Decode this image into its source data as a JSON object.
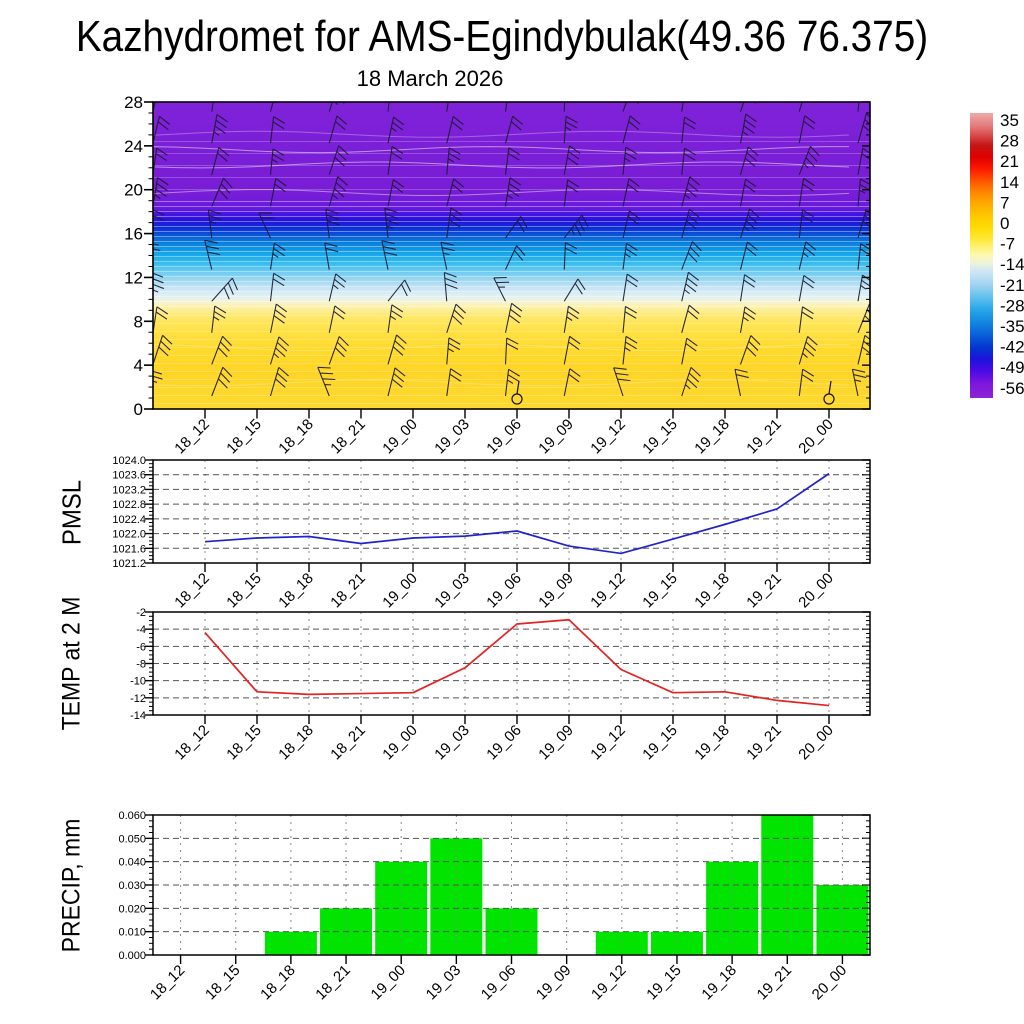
{
  "title": "Kazhydromet for AMS-Egindybulak(49.36 76.375)",
  "subtitle": "18 March 2026",
  "time_labels": [
    "18_12",
    "18_15",
    "18_18",
    "18_21",
    "19_00",
    "19_03",
    "19_06",
    "19_09",
    "19_12",
    "19_15",
    "19_18",
    "19_21",
    "20_00"
  ],
  "chart_data": [
    {
      "id": "cross-section",
      "type": "heatmap",
      "title": "18 March 2026",
      "description": "Time-height temperature cross-section with wind barbs and white contour lines",
      "categories": [
        "18_12",
        "18_15",
        "18_18",
        "18_21",
        "19_00",
        "19_03",
        "19_06",
        "19_09",
        "19_12",
        "19_15",
        "19_18",
        "19_21",
        "20_00"
      ],
      "ylim": [
        0,
        28
      ],
      "ytick_labels": [
        "28",
        "24",
        "20",
        "16",
        "12",
        "8",
        "4",
        "0"
      ],
      "grid": false,
      "wind_barbs": {
        "color": "#1b1b30",
        "columns": 13,
        "rows": 10
      },
      "calm_times": [
        "19_06",
        "20_00"
      ],
      "color_bands": [
        {
          "pos": 0.0,
          "color": "#7f22d8"
        },
        {
          "pos": 0.3,
          "color": "#781dd6"
        },
        {
          "pos": 0.345,
          "color": "#671ade"
        },
        {
          "pos": 0.366,
          "color": "#4414e0"
        },
        {
          "pos": 0.386,
          "color": "#2412de"
        },
        {
          "pos": 0.41,
          "color": "#0d2ed8"
        },
        {
          "pos": 0.435,
          "color": "#0a58d8"
        },
        {
          "pos": 0.46,
          "color": "#0a80e0"
        },
        {
          "pos": 0.49,
          "color": "#14a2e8"
        },
        {
          "pos": 0.52,
          "color": "#30b8ee"
        },
        {
          "pos": 0.55,
          "color": "#66caf0"
        },
        {
          "pos": 0.578,
          "color": "#9ad6f1"
        },
        {
          "pos": 0.603,
          "color": "#c4e3f4"
        },
        {
          "pos": 0.628,
          "color": "#ddeef6"
        },
        {
          "pos": 0.648,
          "color": "#f0f4dc"
        },
        {
          "pos": 0.663,
          "color": "#fbf2b4"
        },
        {
          "pos": 0.685,
          "color": "#feec85"
        },
        {
          "pos": 0.713,
          "color": "#ffe65c"
        },
        {
          "pos": 0.755,
          "color": "#ffe042"
        },
        {
          "pos": 0.8,
          "color": "#ffda2e"
        },
        {
          "pos": 0.885,
          "color": "#fed527"
        },
        {
          "pos": 1.0,
          "color": "#ffd930"
        }
      ],
      "colorbar": {
        "labels": [
          "35",
          "28",
          "21",
          "14",
          "7",
          "0",
          "-7",
          "-14",
          "-21",
          "-28",
          "-35",
          "-42",
          "-49",
          "-56"
        ],
        "stops": [
          {
            "pos": 0.0,
            "color": "#efa9a9"
          },
          {
            "pos": 0.045,
            "color": "#e37c7c"
          },
          {
            "pos": 0.08,
            "color": "#d74848"
          },
          {
            "pos": 0.115,
            "color": "#c41414"
          },
          {
            "pos": 0.155,
            "color": "#e00000"
          },
          {
            "pos": 0.195,
            "color": "#fb1800"
          },
          {
            "pos": 0.235,
            "color": "#ff5000"
          },
          {
            "pos": 0.275,
            "color": "#ff8200"
          },
          {
            "pos": 0.315,
            "color": "#ffa800"
          },
          {
            "pos": 0.355,
            "color": "#ffc400"
          },
          {
            "pos": 0.395,
            "color": "#ffd800"
          },
          {
            "pos": 0.435,
            "color": "#ffe52a"
          },
          {
            "pos": 0.47,
            "color": "#fff172"
          },
          {
            "pos": 0.5,
            "color": "#fdf9b4"
          },
          {
            "pos": 0.53,
            "color": "#e9f3de"
          },
          {
            "pos": 0.555,
            "color": "#cfe7f5"
          },
          {
            "pos": 0.6,
            "color": "#a5d5f1"
          },
          {
            "pos": 0.645,
            "color": "#63c1ee"
          },
          {
            "pos": 0.69,
            "color": "#28a6ea"
          },
          {
            "pos": 0.735,
            "color": "#1286e0"
          },
          {
            "pos": 0.78,
            "color": "#0a5ed8"
          },
          {
            "pos": 0.825,
            "color": "#0534d0"
          },
          {
            "pos": 0.865,
            "color": "#1d12dc"
          },
          {
            "pos": 0.905,
            "color": "#4c0ae4"
          },
          {
            "pos": 0.95,
            "color": "#7e16de"
          },
          {
            "pos": 1.0,
            "color": "#8d23d3"
          }
        ]
      }
    },
    {
      "id": "pmsl",
      "type": "line",
      "ylabel": "PMSL",
      "color": "#2323cc",
      "ylim": [
        1021.2,
        1024.0
      ],
      "ytick_labels": [
        "1024.0",
        "1023.6",
        "1023.2",
        "1022.8",
        "1022.4",
        "1022.0",
        "1021.6",
        "1021.2"
      ],
      "categories": [
        "18_12",
        "18_15",
        "18_18",
        "18_21",
        "19_00",
        "19_03",
        "19_06",
        "19_09",
        "19_12",
        "19_15",
        "19_18",
        "19_21",
        "20_00"
      ],
      "values": [
        1021.78,
        1021.88,
        1021.92,
        1021.73,
        1021.88,
        1021.93,
        1022.07,
        1021.66,
        1021.46,
        1021.85,
        1022.25,
        1022.67,
        1023.63
      ],
      "grid": true
    },
    {
      "id": "temp2m",
      "type": "line",
      "ylabel": "TEMP at 2 M",
      "color": "#e32222",
      "ylim": [
        -14,
        -2
      ],
      "ytick_labels": [
        "-2",
        "-4",
        "-6",
        "-8",
        "-10",
        "-12",
        "-14"
      ],
      "categories": [
        "18_12",
        "18_15",
        "18_18",
        "18_21",
        "19_00",
        "19_03",
        "19_06",
        "19_09",
        "19_12",
        "19_15",
        "19_18",
        "19_21",
        "20_00"
      ],
      "values": [
        -4.4,
        -11.3,
        -11.6,
        -11.5,
        -11.4,
        -8.5,
        -3.4,
        -2.9,
        -8.7,
        -11.4,
        -11.3,
        -12.3,
        -12.9
      ],
      "grid": true
    },
    {
      "id": "precip",
      "type": "bar",
      "ylabel": "PRECIP, mm",
      "color": "#00e400",
      "ylim": [
        0,
        0.06
      ],
      "ytick_labels": [
        "0.060",
        "0.050",
        "0.040",
        "0.030",
        "0.020",
        "0.010",
        "0.000"
      ],
      "categories": [
        "18_12",
        "18_15",
        "18_18",
        "18_21",
        "19_00",
        "19_03",
        "19_06",
        "19_09",
        "19_12",
        "19_15",
        "19_18",
        "19_21",
        "20_00"
      ],
      "values": [
        0,
        0,
        0.01,
        0.02,
        0.04,
        0.05,
        0.02,
        0,
        0.01,
        0.01,
        0.04,
        0.06,
        0.03
      ],
      "grid": true
    }
  ]
}
